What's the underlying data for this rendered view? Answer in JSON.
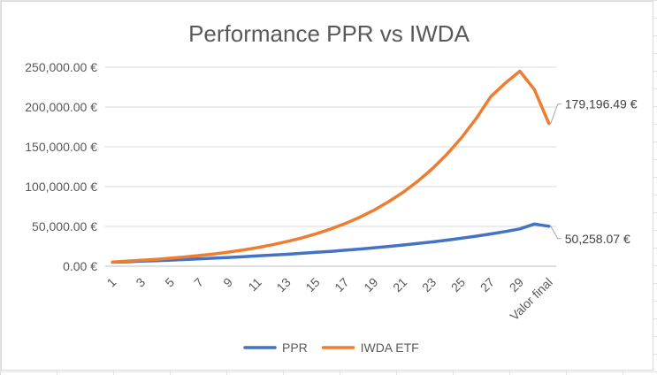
{
  "chart_data": {
    "type": "line",
    "title": "Performance PPR vs IWDA",
    "xlabel": "",
    "ylabel": "",
    "categories": [
      "1",
      "2",
      "3",
      "4",
      "5",
      "6",
      "7",
      "8",
      "9",
      "10",
      "11",
      "12",
      "13",
      "14",
      "15",
      "16",
      "17",
      "18",
      "19",
      "20",
      "21",
      "22",
      "23",
      "24",
      "25",
      "26",
      "27",
      "28",
      "29",
      "30",
      "Valor final"
    ],
    "x_tick_labels": [
      "1",
      "3",
      "5",
      "7",
      "9",
      "11",
      "13",
      "15",
      "17",
      "19",
      "21",
      "23",
      "25",
      "27",
      "29",
      "Valor final"
    ],
    "y_tick_labels": [
      "0.00 €",
      "50,000.00 €",
      "100,000.00 €",
      "150,000.00 €",
      "200,000.00 €",
      "250,000.00 €"
    ],
    "ylim": [
      0,
      250000
    ],
    "grid": true,
    "legend_position": "bottom",
    "series": [
      {
        "name": "PPR",
        "color": "#4472c4",
        "values": [
          5000,
          5600,
          6300,
          7000,
          7700,
          8500,
          9300,
          10100,
          11000,
          12000,
          13000,
          14000,
          15000,
          16200,
          17400,
          18700,
          20100,
          21600,
          23200,
          24900,
          26700,
          28600,
          30600,
          32800,
          35200,
          37800,
          40600,
          43600,
          46900,
          53000,
          50258.07
        ],
        "final_label": "50,258.07 €"
      },
      {
        "name": "IWDA ETF",
        "color": "#ed7d31",
        "values": [
          5300,
          6300,
          7500,
          8700,
          10100,
          11700,
          13400,
          15500,
          17800,
          20500,
          23500,
          27000,
          31000,
          35500,
          40800,
          46800,
          53700,
          61600,
          70700,
          81200,
          93200,
          107000,
          122800,
          140900,
          161700,
          185600,
          213000,
          230000,
          245000,
          222000,
          179196.49
        ],
        "final_label": "179,196.49 €"
      }
    ]
  }
}
